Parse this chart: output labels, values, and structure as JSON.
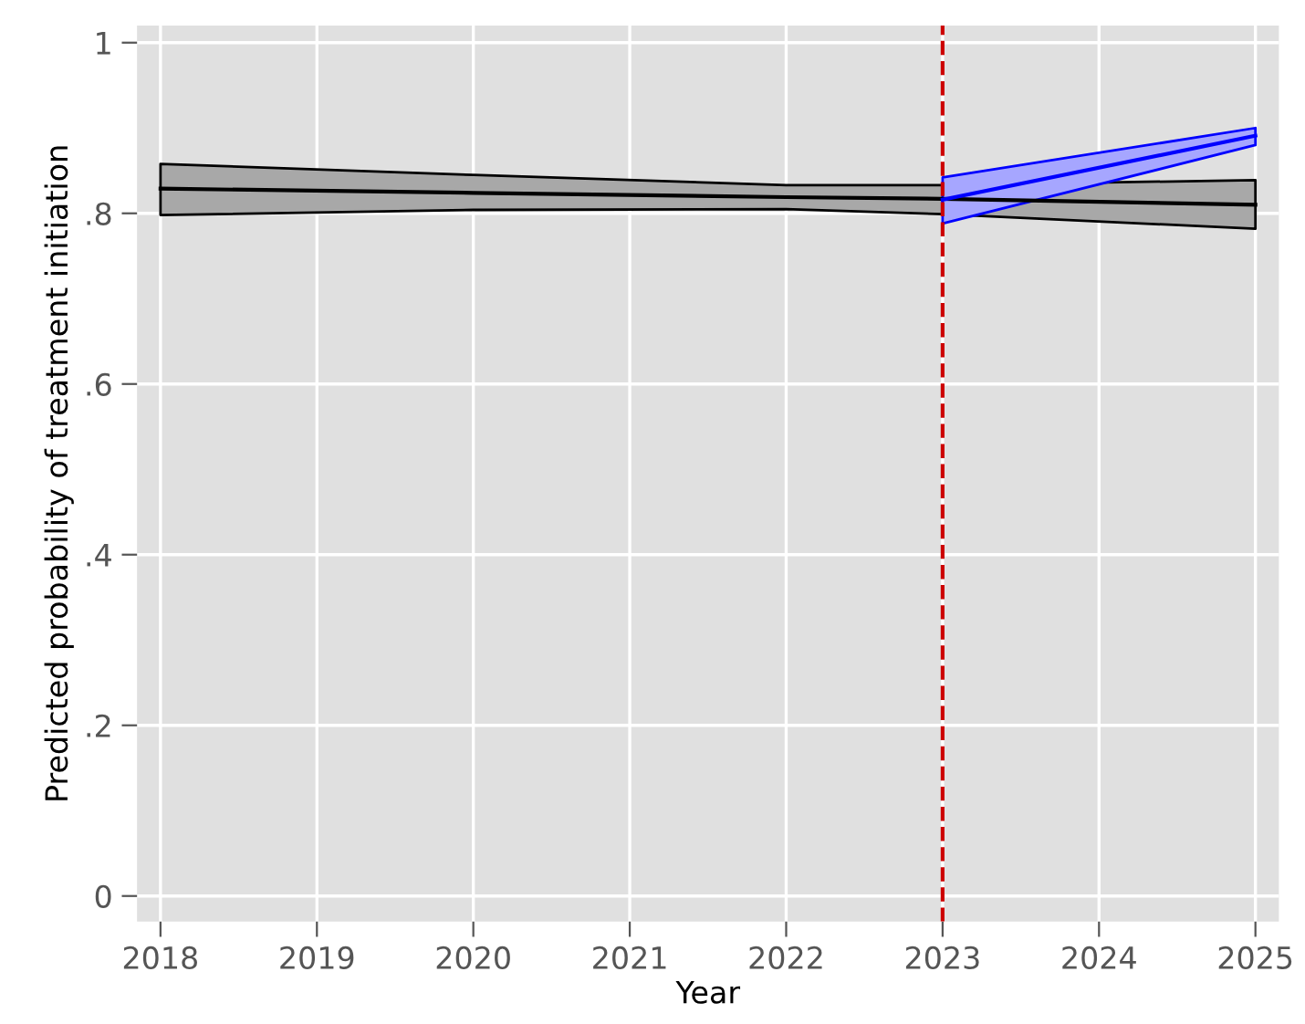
{
  "chart_data": {
    "type": "line",
    "xlabel": "Year",
    "ylabel": "Predicted probability of treatment initiation",
    "series": [
      {
        "color": "#000000",
        "x": [
          2018,
          2020,
          2022,
          2023,
          2025
        ],
        "values": [
          0.829,
          0.824,
          0.819,
          0.817,
          0.81
        ],
        "lower": [
          0.798,
          0.804,
          0.805,
          0.799,
          0.782
        ],
        "upper": [
          0.858,
          0.845,
          0.833,
          0.833,
          0.839
        ]
      },
      {
        "color": "#0000ff",
        "x": [
          2023,
          2025
        ],
        "values": [
          0.816,
          0.891
        ],
        "lower": [
          0.788,
          0.88
        ],
        "upper": [
          0.842,
          0.9
        ]
      }
    ],
    "xlim": [
      2017.85,
      2025.15
    ],
    "ylim": [
      -0.03,
      1.02
    ],
    "xticks": [
      2018,
      2019,
      2020,
      2021,
      2022,
      2023,
      2024,
      2025
    ],
    "yticks": [
      0,
      {
        "value": 0.2,
        "label": ".2"
      },
      {
        "value": 0.4,
        "label": ".4"
      },
      {
        "value": 0.6,
        "label": ".6"
      },
      {
        "value": 0.8,
        "label": ".8"
      },
      1
    ],
    "ref_lines": [
      {
        "axis": "x",
        "value": 2023,
        "color": "#cc0000",
        "line_style": "dashed"
      }
    ],
    "grid": true,
    "legend": false,
    "marker": "none",
    "line_style": "solid"
  }
}
